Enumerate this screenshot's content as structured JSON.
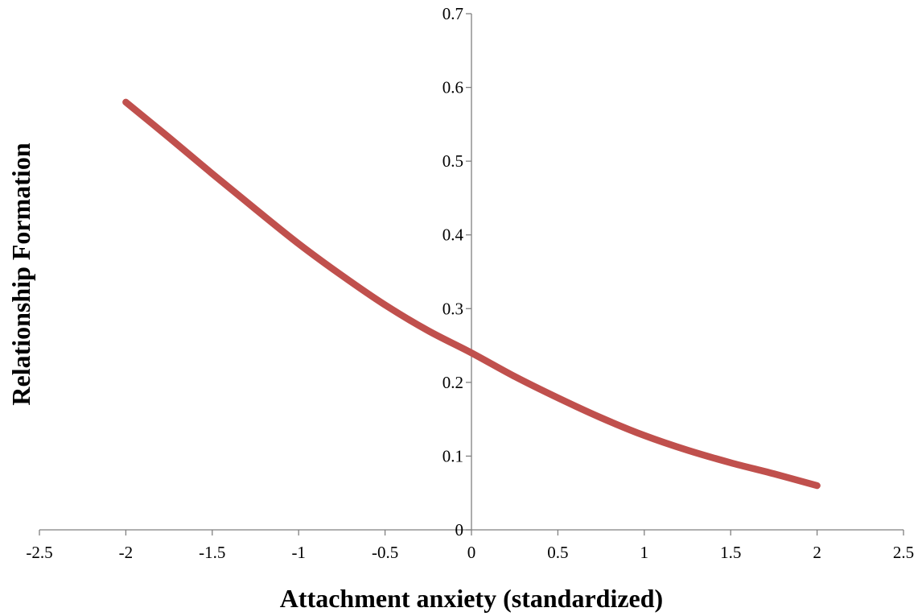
{
  "chart_data": {
    "type": "line",
    "title": "",
    "xlabel": "Attachment anxiety (standardized)",
    "ylabel": "Relationship Formation",
    "xlim": [
      -2.5,
      2.5
    ],
    "ylim": [
      0,
      0.7
    ],
    "x_ticks": [
      "-2.5",
      "-2",
      "-1.5",
      "-1",
      "-0.5",
      "0",
      "0.5",
      "1",
      "1.5",
      "2",
      "2.5"
    ],
    "y_ticks": [
      "0",
      "0.1",
      "0.2",
      "0.3",
      "0.4",
      "0.5",
      "0.6",
      "0.7"
    ],
    "grid": false,
    "legend": "none",
    "series": [
      {
        "color": "#C0504D",
        "x": [
          -2.0,
          -1.75,
          -1.5,
          -1.25,
          -1.0,
          -0.75,
          -0.5,
          -0.25,
          0.0,
          0.25,
          0.5,
          0.75,
          1.0,
          1.25,
          1.5,
          1.75,
          2.0
        ],
        "y": [
          0.58,
          0.532,
          0.483,
          0.435,
          0.388,
          0.345,
          0.305,
          0.27,
          0.24,
          0.208,
          0.179,
          0.152,
          0.128,
          0.108,
          0.091,
          0.076,
          0.06
        ]
      }
    ]
  }
}
